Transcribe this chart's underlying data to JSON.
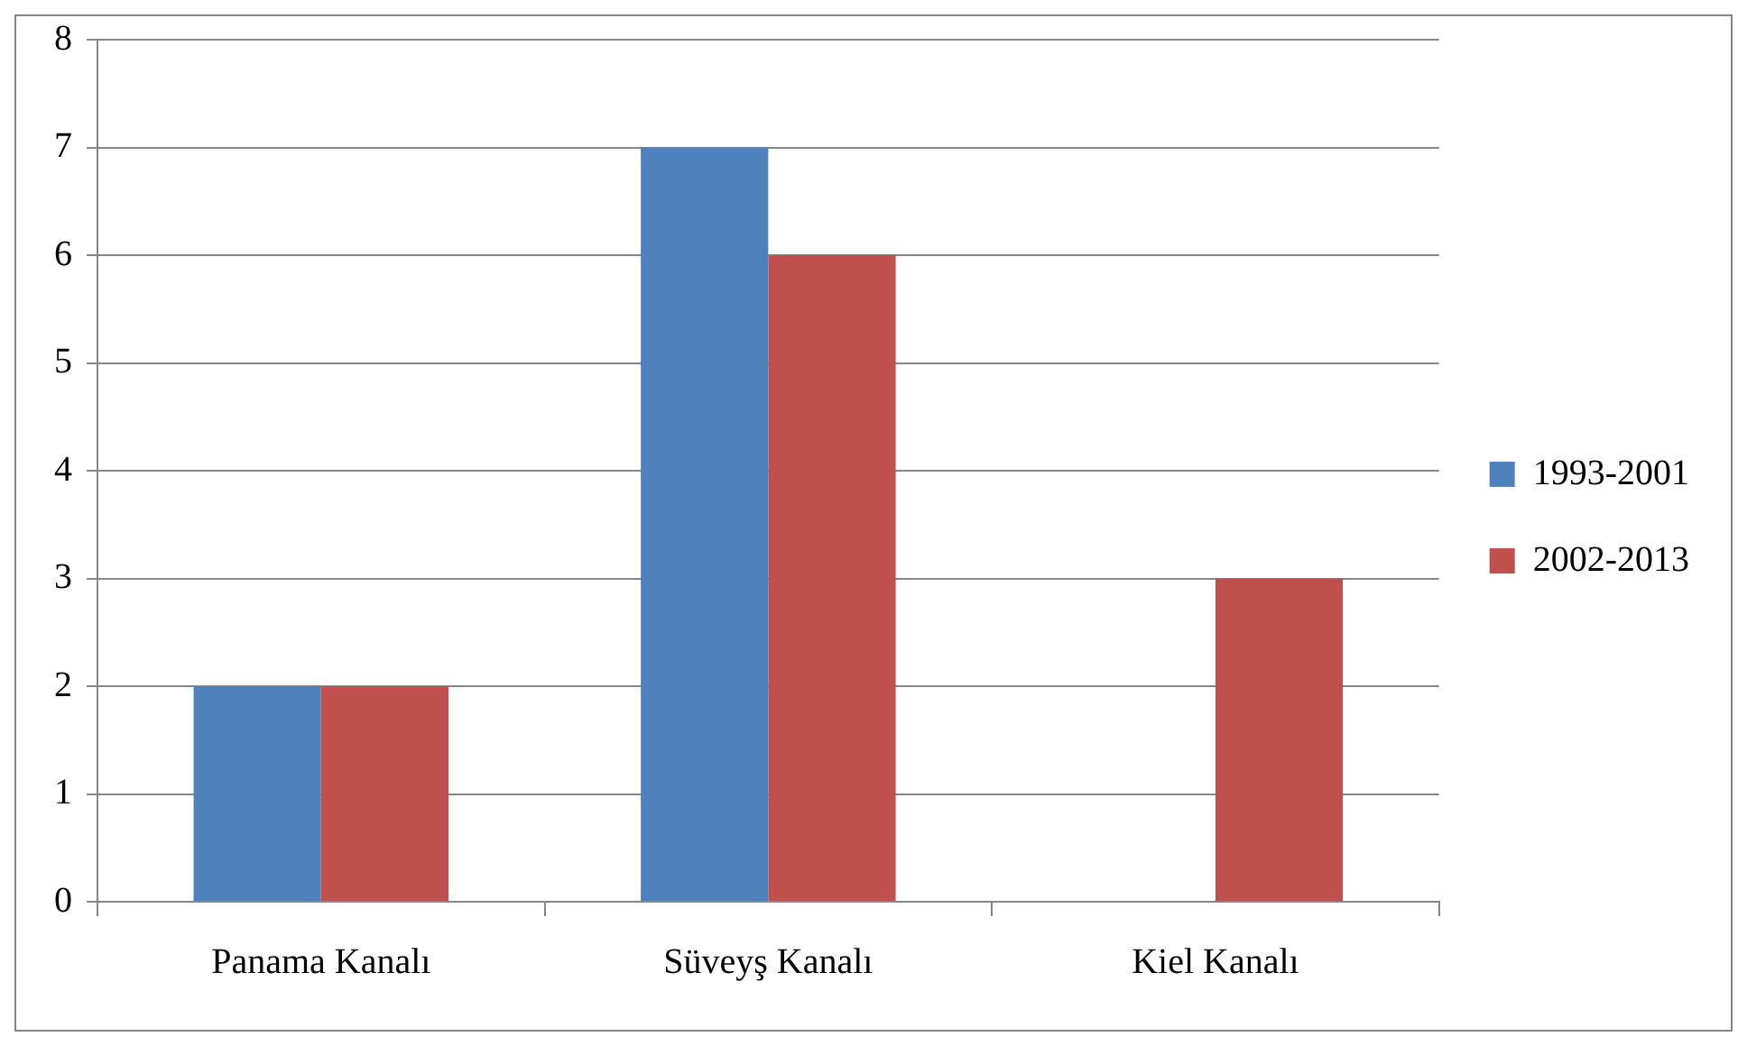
{
  "chart_data": {
    "type": "bar",
    "categories": [
      "Panama Kanalı",
      "Süveyş Kanalı",
      "Kiel Kanalı"
    ],
    "series": [
      {
        "name": "1993-2001",
        "color": "#4f81bd",
        "values": [
          2,
          7,
          0
        ]
      },
      {
        "name": "2002-2013",
        "color": "#c0504d",
        "values": [
          2,
          6,
          3
        ]
      }
    ],
    "ylim": [
      0,
      8
    ],
    "yticks": [
      0,
      1,
      2,
      3,
      4,
      5,
      6,
      7,
      8
    ],
    "grid": "y",
    "legend": "right"
  }
}
